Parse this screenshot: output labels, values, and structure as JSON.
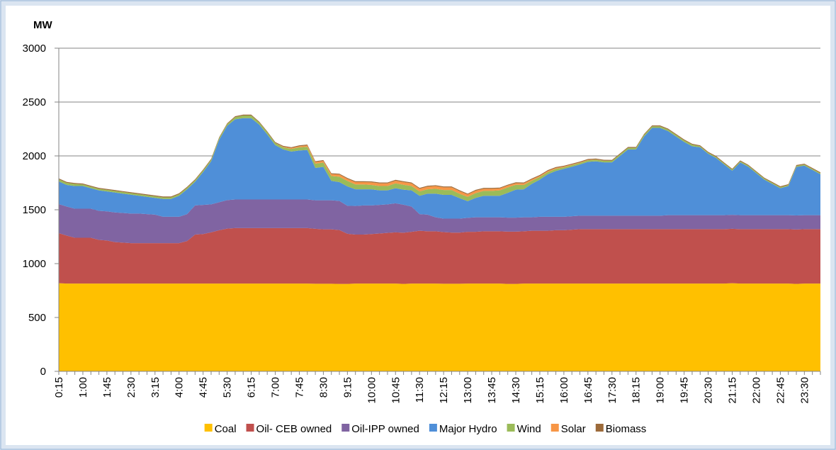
{
  "chart_data": {
    "type": "stacked_area",
    "y_label": "MW",
    "categories": [
      "0:15",
      null,
      null,
      "1:00",
      null,
      null,
      "1:45",
      null,
      null,
      "2:30",
      null,
      null,
      "3:15",
      null,
      null,
      "4:00",
      null,
      null,
      "4:45",
      null,
      null,
      "5:30",
      null,
      null,
      "6:15",
      null,
      null,
      "7:00",
      null,
      null,
      "7:45",
      null,
      null,
      "8:30",
      null,
      null,
      "9:15",
      null,
      null,
      "10:00",
      null,
      null,
      "10:45",
      null,
      null,
      "11:30",
      null,
      null,
      "12:15",
      null,
      null,
      "13:00",
      null,
      null,
      "13:45",
      null,
      null,
      "14:30",
      null,
      null,
      "15:15",
      null,
      null,
      "16:00",
      null,
      null,
      "16:45",
      null,
      null,
      "17:30",
      null,
      null,
      "18:15",
      null,
      null,
      "19:00",
      null,
      null,
      "19:45",
      null,
      null,
      "20:30",
      null,
      null,
      "21:15",
      null,
      null,
      "22:00",
      null,
      null,
      "22:45",
      null,
      null,
      "23:30",
      null,
      null
    ],
    "ylim": [
      0,
      3000
    ],
    "yticks": [
      0,
      500,
      1000,
      1500,
      2000,
      2500,
      3000
    ],
    "grid": true,
    "series": [
      {
        "name": "Coal",
        "color": "#ffc000",
        "values": [
          818,
          815,
          815,
          815,
          815,
          815,
          815,
          815,
          815,
          815,
          815,
          815,
          815,
          815,
          815,
          815,
          815,
          815,
          815,
          815,
          815,
          815,
          815,
          815,
          815,
          815,
          815,
          815,
          815,
          815,
          815,
          815,
          813,
          813,
          813,
          812,
          812,
          815,
          815,
          815,
          815,
          815,
          815,
          812,
          815,
          815,
          815,
          815,
          813,
          813,
          813,
          815,
          815,
          815,
          815,
          815,
          812,
          812,
          815,
          815,
          815,
          815,
          815,
          815,
          815,
          815,
          815,
          815,
          815,
          815,
          815,
          815,
          815,
          815,
          815,
          815,
          815,
          815,
          815,
          815,
          815,
          815,
          815,
          815,
          818,
          815,
          815,
          815,
          815,
          815,
          815,
          815,
          812,
          815,
          815,
          815
        ]
      },
      {
        "name": "Oil- CEB owned",
        "color": "#c0504d",
        "values": [
          465,
          445,
          425,
          425,
          425,
          405,
          400,
          385,
          380,
          375,
          375,
          375,
          375,
          375,
          375,
          375,
          395,
          455,
          460,
          475,
          495,
          510,
          515,
          515,
          515,
          515,
          515,
          515,
          515,
          515,
          515,
          515,
          510,
          505,
          505,
          500,
          465,
          455,
          455,
          460,
          465,
          470,
          475,
          475,
          480,
          490,
          485,
          485,
          480,
          475,
          475,
          480,
          480,
          485,
          485,
          485,
          485,
          485,
          485,
          490,
          490,
          490,
          495,
          495,
          500,
          505,
          505,
          505,
          505,
          505,
          505,
          505,
          505,
          505,
          505,
          505,
          505,
          505,
          505,
          505,
          505,
          505,
          505,
          505,
          505,
          505,
          505,
          505,
          505,
          505,
          505,
          505,
          505,
          505,
          505,
          505
        ]
      },
      {
        "name": "Oil-IPP owned",
        "color": "#8064a2",
        "values": [
          270,
          270,
          270,
          270,
          270,
          270,
          270,
          275,
          275,
          275,
          275,
          270,
          265,
          245,
          245,
          245,
          250,
          270,
          270,
          260,
          260,
          265,
          265,
          265,
          265,
          265,
          265,
          265,
          265,
          265,
          265,
          265,
          265,
          270,
          270,
          270,
          260,
          265,
          270,
          265,
          265,
          265,
          270,
          260,
          235,
          155,
          155,
          130,
          125,
          130,
          130,
          130,
          135,
          130,
          130,
          130,
          130,
          130,
          130,
          125,
          130,
          130,
          125,
          125,
          125,
          125,
          125,
          125,
          125,
          125,
          125,
          125,
          125,
          125,
          125,
          125,
          130,
          130,
          130,
          130,
          130,
          130,
          130,
          130,
          130,
          130,
          130,
          130,
          130,
          130,
          130,
          130,
          130,
          130,
          130,
          130
        ]
      },
      {
        "name": "Major Hydro",
        "color": "#4f8fd8",
        "values": [
          210,
          200,
          210,
          210,
          190,
          190,
          185,
          185,
          180,
          175,
          165,
          160,
          155,
          165,
          165,
          195,
          230,
          220,
          305,
          400,
          580,
          690,
          745,
          755,
          755,
          695,
          605,
          505,
          465,
          445,
          455,
          460,
          300,
          310,
          180,
          175,
          180,
          155,
          150,
          150,
          135,
          130,
          140,
          140,
          150,
          170,
          195,
          220,
          220,
          220,
          190,
          155,
          180,
          200,
          200,
          200,
          230,
          260,
          260,
          310,
          345,
          395,
          425,
          445,
          460,
          475,
          500,
          505,
          495,
          495,
          555,
          615,
          615,
          735,
          815,
          815,
          780,
          730,
          680,
          640,
          630,
          570,
          530,
          470,
          410,
          490,
          450,
          390,
          330,
          290,
          250,
          270,
          450,
          460,
          420,
          380
        ]
      },
      {
        "name": "Wind",
        "color": "#9bbb59",
        "values": [
          20,
          20,
          20,
          15,
          15,
          15,
          15,
          15,
          15,
          15,
          15,
          15,
          15,
          15,
          15,
          15,
          15,
          15,
          15,
          15,
          15,
          15,
          20,
          25,
          25,
          20,
          20,
          20,
          20,
          25,
          30,
          30,
          40,
          40,
          45,
          50,
          50,
          45,
          45,
          40,
          40,
          40,
          45,
          45,
          40,
          40,
          40,
          45,
          45,
          45,
          40,
          40,
          45,
          45,
          45,
          50,
          50,
          45,
          40,
          30,
          25,
          20,
          20,
          15,
          15,
          15,
          15,
          15,
          15,
          15,
          15,
          15,
          15,
          15,
          15,
          15,
          15,
          15,
          15,
          15,
          10,
          10,
          10,
          10,
          10,
          10,
          10,
          10,
          10,
          10,
          10,
          10,
          10,
          10,
          10,
          10
        ]
      },
      {
        "name": "Solar",
        "color": "#f79646",
        "values": [
          0,
          0,
          0,
          0,
          0,
          0,
          0,
          0,
          0,
          0,
          0,
          0,
          0,
          0,
          0,
          0,
          0,
          0,
          0,
          0,
          0,
          0,
          0,
          0,
          0,
          0,
          0,
          0,
          5,
          8,
          10,
          12,
          15,
          15,
          18,
          20,
          20,
          22,
          22,
          25,
          25,
          25,
          25,
          25,
          25,
          25,
          25,
          25,
          25,
          25,
          25,
          22,
          22,
          20,
          20,
          18,
          18,
          15,
          15,
          12,
          10,
          10,
          8,
          6,
          5,
          4,
          3,
          2,
          1,
          0,
          0,
          0,
          0,
          0,
          0,
          0,
          0,
          0,
          0,
          0,
          0,
          0,
          0,
          0,
          0,
          0,
          0,
          0,
          0,
          0,
          0,
          0,
          0,
          0,
          0,
          0
        ]
      },
      {
        "name": "Biomass",
        "color": "#9c6a3a",
        "values": [
          8,
          8,
          8,
          8,
          8,
          8,
          8,
          8,
          8,
          8,
          8,
          8,
          8,
          8,
          8,
          8,
          8,
          8,
          8,
          8,
          8,
          8,
          8,
          8,
          8,
          8,
          8,
          8,
          8,
          8,
          8,
          8,
          8,
          8,
          8,
          8,
          8,
          8,
          8,
          8,
          8,
          8,
          8,
          8,
          8,
          8,
          8,
          8,
          8,
          8,
          8,
          8,
          8,
          8,
          8,
          8,
          8,
          8,
          8,
          8,
          8,
          8,
          8,
          8,
          8,
          8,
          8,
          8,
          8,
          8,
          8,
          8,
          8,
          8,
          8,
          8,
          8,
          8,
          8,
          8,
          8,
          8,
          8,
          8,
          8,
          8,
          8,
          8,
          8,
          8,
          8,
          8,
          8,
          8,
          8,
          8
        ]
      }
    ]
  }
}
